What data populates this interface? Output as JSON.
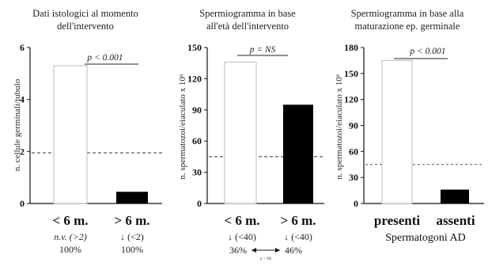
{
  "chart_data": [
    {
      "type": "bar",
      "title": [
        "Dati istologici al momento",
        "dell'intervento"
      ],
      "ylabel": "n. cellule germinali/tubulo",
      "ylim": [
        0,
        6
      ],
      "yticks": [
        0,
        2,
        4,
        6
      ],
      "categories": [
        "< 6 m.",
        "> 6 m."
      ],
      "values": [
        5.3,
        0.45
      ],
      "bar_fill": [
        "#ffffff",
        "#000000"
      ],
      "reference_line": 1.95,
      "p_value": "p < 0.001",
      "notes": [
        [
          "n.v. (>2)",
          "100%"
        ],
        [
          "↓ (<2)",
          "100%"
        ]
      ],
      "xlabel": ""
    },
    {
      "type": "bar",
      "title": [
        "Spermiogramma in base",
        "all'età dell'intervento"
      ],
      "ylabel": "n. spermatozoi/eiaculato x 10⁶",
      "ylim": [
        0,
        150
      ],
      "yticks": [
        0,
        30,
        60,
        90,
        120,
        150
      ],
      "categories": [
        "< 6 m.",
        "> 6 m."
      ],
      "values": [
        136,
        95
      ],
      "bar_fill": [
        "#ffffff",
        "#000000"
      ],
      "reference_line": 45,
      "p_value": "p = NS",
      "notes": [
        [
          "↓ (<40)",
          "36%"
        ],
        [
          "↓ (<40)",
          "46%"
        ]
      ],
      "small_note": "p = NS",
      "xlabel": ""
    },
    {
      "type": "bar",
      "title": [
        "Spermiogramma in base alla",
        "maturazione ep. germinale"
      ],
      "ylabel": "n. spermatozoi/eiaculato x 10⁶",
      "ylim": [
        0,
        180
      ],
      "yticks": [
        0,
        30,
        60,
        90,
        120,
        150,
        180
      ],
      "categories": [
        "presenti",
        "assenti"
      ],
      "values": [
        165,
        16
      ],
      "bar_fill": [
        "#ffffff",
        "#000000"
      ],
      "reference_line": 45,
      "p_value": "p < 0.001",
      "xlabel": "Spermatogoni AD"
    }
  ]
}
